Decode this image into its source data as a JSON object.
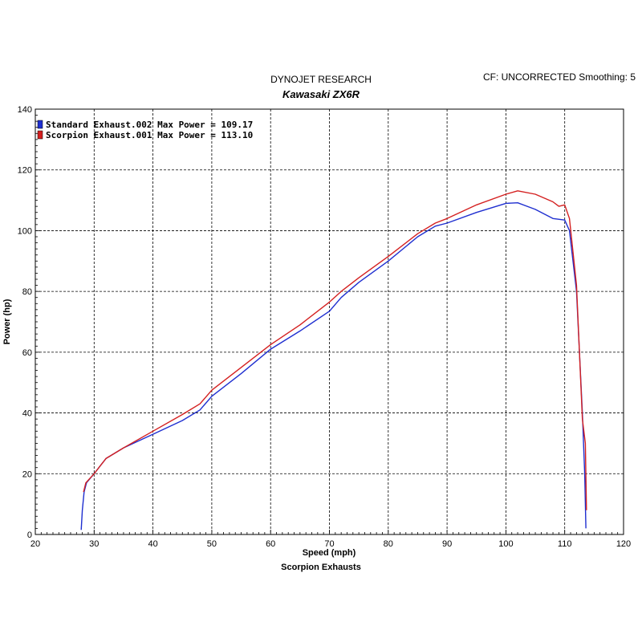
{
  "header": {
    "title": "DYNOJET RESEARCH",
    "subtitle": "Kawasaki ZX6R",
    "settings": "CF: UNCORRECTED  Smoothing: 5"
  },
  "footer": "Scorpion Exhausts",
  "colors": {
    "standard": "#1f2fd0",
    "scorpion": "#d42020",
    "grid": "#000000"
  },
  "chart_data": {
    "type": "line",
    "xlabel": "Speed (mph)",
    "ylabel": "Power (hp)",
    "xlim": [
      20,
      120
    ],
    "ylim": [
      0,
      140
    ],
    "xticks": [
      20,
      30,
      40,
      50,
      60,
      70,
      80,
      90,
      100,
      110,
      120
    ],
    "yticks": [
      0,
      20,
      40,
      60,
      80,
      100,
      120,
      140
    ],
    "grid": true,
    "legend_position": "top-left",
    "series": [
      {
        "name": "Standard Exhaust.002 Max Power = 109.17",
        "color": "#1f2fd0",
        "points": [
          [
            27.8,
            1.5
          ],
          [
            28,
            8
          ],
          [
            28.3,
            14
          ],
          [
            28.7,
            17
          ],
          [
            30,
            20
          ],
          [
            32,
            25
          ],
          [
            35,
            28.5
          ],
          [
            40,
            33
          ],
          [
            45,
            37.5
          ],
          [
            48,
            41
          ],
          [
            50,
            45.5
          ],
          [
            55,
            53
          ],
          [
            60,
            61
          ],
          [
            65,
            67
          ],
          [
            70,
            73.5
          ],
          [
            72,
            78
          ],
          [
            75,
            83
          ],
          [
            80,
            90
          ],
          [
            85,
            98
          ],
          [
            88,
            101.5
          ],
          [
            90,
            102.5
          ],
          [
            95,
            106
          ],
          [
            100,
            109
          ],
          [
            102,
            109.17
          ],
          [
            105,
            107
          ],
          [
            108,
            104
          ],
          [
            110,
            103.5
          ],
          [
            110.8,
            100
          ],
          [
            112,
            80
          ],
          [
            113,
            40
          ],
          [
            113.4,
            20
          ],
          [
            113.6,
            2
          ]
        ]
      },
      {
        "name": "Scorpion Exhaust.001 Max Power = 113.10",
        "color": "#d42020",
        "points": [
          [
            28.2,
            14
          ],
          [
            28.6,
            17
          ],
          [
            30,
            20
          ],
          [
            32,
            25
          ],
          [
            35,
            28.5
          ],
          [
            40,
            34
          ],
          [
            45,
            39.5
          ],
          [
            48,
            43
          ],
          [
            50,
            47.5
          ],
          [
            55,
            55
          ],
          [
            60,
            62.5
          ],
          [
            65,
            69
          ],
          [
            70,
            76.5
          ],
          [
            72,
            80
          ],
          [
            75,
            84.5
          ],
          [
            80,
            91.5
          ],
          [
            85,
            99
          ],
          [
            88,
            102.5
          ],
          [
            90,
            104
          ],
          [
            95,
            108.5
          ],
          [
            100,
            112
          ],
          [
            102,
            113.1
          ],
          [
            105,
            112
          ],
          [
            108,
            109.5
          ],
          [
            109,
            108
          ],
          [
            110,
            108.5
          ],
          [
            110.8,
            104
          ],
          [
            112,
            82
          ],
          [
            113,
            38
          ],
          [
            113.5,
            30
          ],
          [
            113.7,
            8
          ]
        ]
      }
    ]
  }
}
